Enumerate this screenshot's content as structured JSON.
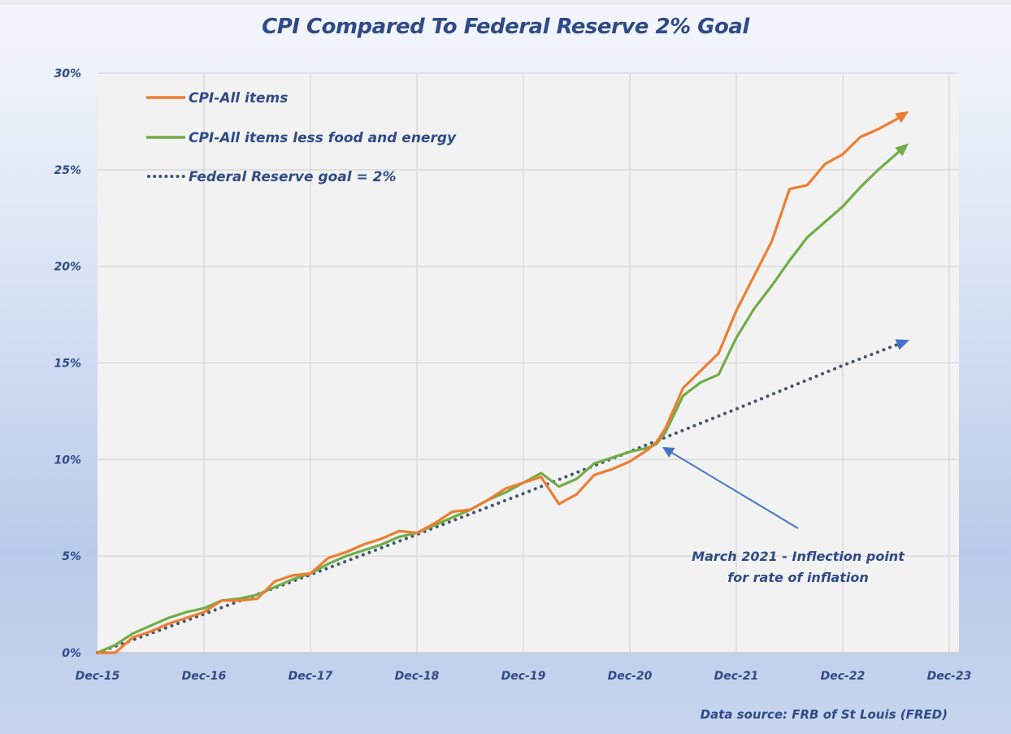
{
  "chart_data": {
    "type": "line",
    "title": "CPI Compared To Federal Reserve 2% Goal",
    "xlabel": "",
    "ylabel": "",
    "ylim": [
      0,
      30
    ],
    "y_ticks": [
      0,
      5,
      10,
      15,
      20,
      25,
      30
    ],
    "y_tick_labels": [
      "0%",
      "5%",
      "10%",
      "15%",
      "20%",
      "25%",
      "30%"
    ],
    "x_range_months": [
      0,
      96
    ],
    "x_tick_months": [
      0,
      12,
      24,
      36,
      48,
      60,
      72,
      84,
      96
    ],
    "x_tick_labels": [
      "Dec-15",
      "Dec-16",
      "Dec-17",
      "Dec-18",
      "Dec-19",
      "Dec-20",
      "Dec-21",
      "Dec-22",
      "Dec-23"
    ],
    "x_unit": "months since Dec-15",
    "grid": true,
    "legend_position": "top-left",
    "source": "Data source: FRB of St Louis (FRED)",
    "annotation": {
      "lines": [
        "March 2021 - Inflection point",
        "for rate of inflation"
      ],
      "points_to": {
        "month": 63,
        "value": 10.9
      }
    },
    "series": [
      {
        "name": "CPI-All items",
        "color": "#ed7d31",
        "style": "solid",
        "end_arrow": true,
        "x": [
          0,
          2,
          4,
          6,
          8,
          10,
          12,
          14,
          16,
          18,
          20,
          22,
          24,
          26,
          28,
          30,
          32,
          34,
          36,
          38,
          40,
          42,
          44,
          46,
          48,
          50,
          52,
          54,
          56,
          58,
          60,
          62,
          63,
          64,
          66,
          68,
          70,
          72,
          74,
          76,
          78,
          80,
          82,
          84,
          86,
          88,
          90,
          91
        ],
        "values": [
          0,
          0.0,
          0.8,
          1.1,
          1.5,
          1.8,
          2.1,
          2.7,
          2.7,
          2.8,
          3.7,
          4.0,
          4.1,
          4.9,
          5.2,
          5.6,
          5.9,
          6.3,
          6.2,
          6.7,
          7.3,
          7.4,
          7.9,
          8.5,
          8.8,
          9.1,
          7.7,
          8.2,
          9.2,
          9.5,
          9.9,
          10.5,
          10.9,
          11.6,
          13.7,
          14.6,
          15.5,
          17.7,
          19.5,
          21.3,
          24.0,
          24.2,
          25.3,
          25.8,
          26.7,
          27.1,
          27.6,
          27.9
        ]
      },
      {
        "name": "CPI-All items less food and energy",
        "color": "#70ad47",
        "style": "solid",
        "end_arrow": true,
        "x": [
          0,
          2,
          4,
          6,
          8,
          10,
          12,
          14,
          16,
          18,
          20,
          22,
          24,
          26,
          28,
          30,
          32,
          34,
          36,
          38,
          40,
          42,
          44,
          46,
          48,
          50,
          52,
          54,
          56,
          58,
          60,
          62,
          63,
          64,
          66,
          68,
          70,
          72,
          74,
          76,
          78,
          80,
          82,
          84,
          86,
          88,
          90,
          91
        ],
        "values": [
          0,
          0.4,
          1.0,
          1.4,
          1.8,
          2.1,
          2.3,
          2.7,
          2.8,
          3.0,
          3.4,
          3.8,
          4.1,
          4.6,
          5.0,
          5.3,
          5.6,
          6.0,
          6.2,
          6.6,
          7.0,
          7.4,
          7.9,
          8.3,
          8.8,
          9.3,
          8.6,
          9.0,
          9.8,
          10.1,
          10.4,
          10.6,
          10.8,
          11.4,
          13.3,
          14.0,
          14.4,
          16.3,
          17.8,
          19.0,
          20.3,
          21.5,
          22.3,
          23.1,
          24.1,
          25.0,
          25.8,
          26.2
        ]
      },
      {
        "name": "Federal Reserve goal = 2%",
        "color": "#44546a",
        "style": "dotted",
        "end_arrow": true,
        "x": [
          0,
          12,
          24,
          36,
          48,
          60,
          72,
          84,
          91
        ],
        "values": [
          0,
          2.0,
          4.04,
          6.12,
          8.24,
          10.41,
          12.62,
          14.87,
          16.1
        ]
      }
    ]
  }
}
